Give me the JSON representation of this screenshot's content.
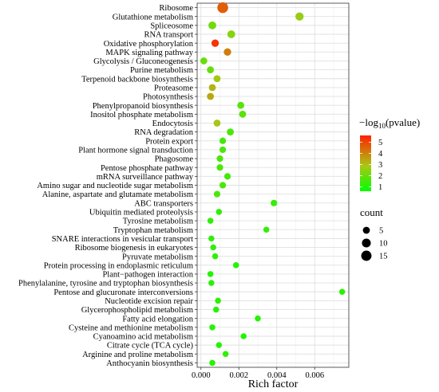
{
  "chart_data": {
    "type": "scatter",
    "xlabel": "Rich factor",
    "xlim": [
      -0.0002,
      0.0078
    ],
    "xticks": [
      0.0,
      0.002,
      0.004,
      0.006
    ],
    "xtick_labels": [
      "0.000",
      "0.002",
      "0.004",
      "0.006"
    ],
    "grid": true,
    "categories": [
      "Ribosome",
      "Glutathione metabolism",
      "Spliceosome",
      "RNA transport",
      "Oxidative phosphorylation",
      "MAPK signaling pathway",
      "Glycolysis / Gluconeogenesis",
      "Purine metabolism",
      "Terpenoid backbone biosynthesis",
      "Proteasome",
      "Photosynthesis",
      "Phenylpropanoid biosynthesis",
      "Inositol phosphate metabolism",
      "Endocytosis",
      "RNA degradation",
      "Protein export",
      "Plant hormone signal transduction",
      "Phagosome",
      "Pentose phosphate pathway",
      "mRNA surveillance pathway",
      "Amino sugar and nucleotide sugar metabolism",
      "Alanine, aspartate and glutamate metabolism",
      "ABC transporters",
      "Ubiquitin mediated proteolysis",
      "Tyrosine metabolism",
      "Tryptophan metabolism",
      "SNARE interactions in vesicular transport",
      "Ribosome biogenesis in eukaryotes",
      "Pyruvate metabolism",
      "Protein processing in endoplasmic reticulum",
      "Plant−pathogen interaction",
      "Phenylalanine, tyrosine and tryptophan biosynthesis",
      "Pentose and glucuronate interconversions",
      "Nucleotide excision repair",
      "Glycerophospholipid metabolism",
      "Fatty acid elongation",
      "Cysteine and methionine metabolism",
      "Cyanoamino acid metabolism",
      "Citrate cycle (TCA cycle)",
      "Arginine and proline metabolism",
      "Anthocyanin biosynthesis"
    ],
    "points": [
      {
        "x": 0.00115,
        "count": 17,
        "neglog10p": 4.6
      },
      {
        "x": 0.0052,
        "count": 8,
        "neglog10p": 2.6
      },
      {
        "x": 0.0006,
        "count": 7,
        "neglog10p": 2.1
      },
      {
        "x": 0.0016,
        "count": 7,
        "neglog10p": 2.4
      },
      {
        "x": 0.00075,
        "count": 6,
        "neglog10p": 5.3
      },
      {
        "x": 0.0014,
        "count": 6,
        "neglog10p": 4.1
      },
      {
        "x": 0.00015,
        "count": 5,
        "neglog10p": 2.0
      },
      {
        "x": 0.0005,
        "count": 5,
        "neglog10p": 1.9
      },
      {
        "x": 0.00085,
        "count": 5,
        "neglog10p": 2.8
      },
      {
        "x": 0.0006,
        "count": 5,
        "neglog10p": 3.2
      },
      {
        "x": 0.0005,
        "count": 5,
        "neglog10p": 3.4
      },
      {
        "x": 0.0021,
        "count": 5,
        "neglog10p": 1.8
      },
      {
        "x": 0.0022,
        "count": 5,
        "neglog10p": 1.8
      },
      {
        "x": 0.00085,
        "count": 5,
        "neglog10p": 2.9
      },
      {
        "x": 0.00155,
        "count": 5,
        "neglog10p": 1.6
      },
      {
        "x": 0.00115,
        "count": 4,
        "neglog10p": 1.5
      },
      {
        "x": 0.00115,
        "count": 4,
        "neglog10p": 1.6
      },
      {
        "x": 0.001,
        "count": 4,
        "neglog10p": 1.6
      },
      {
        "x": 0.001,
        "count": 4,
        "neglog10p": 1.6
      },
      {
        "x": 0.0014,
        "count": 4,
        "neglog10p": 1.5
      },
      {
        "x": 0.00115,
        "count": 4,
        "neglog10p": 1.6
      },
      {
        "x": 0.00085,
        "count": 4,
        "neglog10p": 1.6
      },
      {
        "x": 0.00385,
        "count": 4,
        "neglog10p": 1.3
      },
      {
        "x": 0.00095,
        "count": 3,
        "neglog10p": 1.2
      },
      {
        "x": 0.0005,
        "count": 3,
        "neglog10p": 1.2
      },
      {
        "x": 0.00345,
        "count": 3,
        "neglog10p": 1.3
      },
      {
        "x": 0.00055,
        "count": 3,
        "neglog10p": 1.2
      },
      {
        "x": 0.00065,
        "count": 3,
        "neglog10p": 1.2
      },
      {
        "x": 0.00075,
        "count": 3,
        "neglog10p": 1.2
      },
      {
        "x": 0.00185,
        "count": 3,
        "neglog10p": 1.1
      },
      {
        "x": 0.0005,
        "count": 3,
        "neglog10p": 1.1
      },
      {
        "x": 0.00055,
        "count": 3,
        "neglog10p": 1.1
      },
      {
        "x": 0.00745,
        "count": 3,
        "neglog10p": 1.2
      },
      {
        "x": 0.0009,
        "count": 3,
        "neglog10p": 1.2
      },
      {
        "x": 0.0008,
        "count": 3,
        "neglog10p": 1.1
      },
      {
        "x": 0.003,
        "count": 3,
        "neglog10p": 1.1
      },
      {
        "x": 0.0006,
        "count": 3,
        "neglog10p": 1.1
      },
      {
        "x": 0.00225,
        "count": 3,
        "neglog10p": 1.1
      },
      {
        "x": 0.00095,
        "count": 3,
        "neglog10p": 1.1
      },
      {
        "x": 0.0013,
        "count": 3,
        "neglog10p": 1.2
      },
      {
        "x": 0.0006,
        "count": 3,
        "neglog10p": 1.1
      }
    ],
    "color_legend": {
      "title_prefix": "−log",
      "title_sub": "10",
      "title_suffix": "(pvalue)",
      "min": 0.6,
      "max": 5.6,
      "ticks": [
        1,
        2,
        3,
        4,
        5
      ],
      "tick_labels": [
        "1",
        "2",
        "3",
        "4",
        "5"
      ],
      "low_color": "#00ff00",
      "mid_color": "#a8c814",
      "high_color": "#ff2200"
    },
    "size_legend": {
      "title": "count",
      "values": [
        5,
        10,
        15
      ],
      "labels": [
        "5",
        "10",
        "15"
      ]
    },
    "legend_position": "right"
  }
}
